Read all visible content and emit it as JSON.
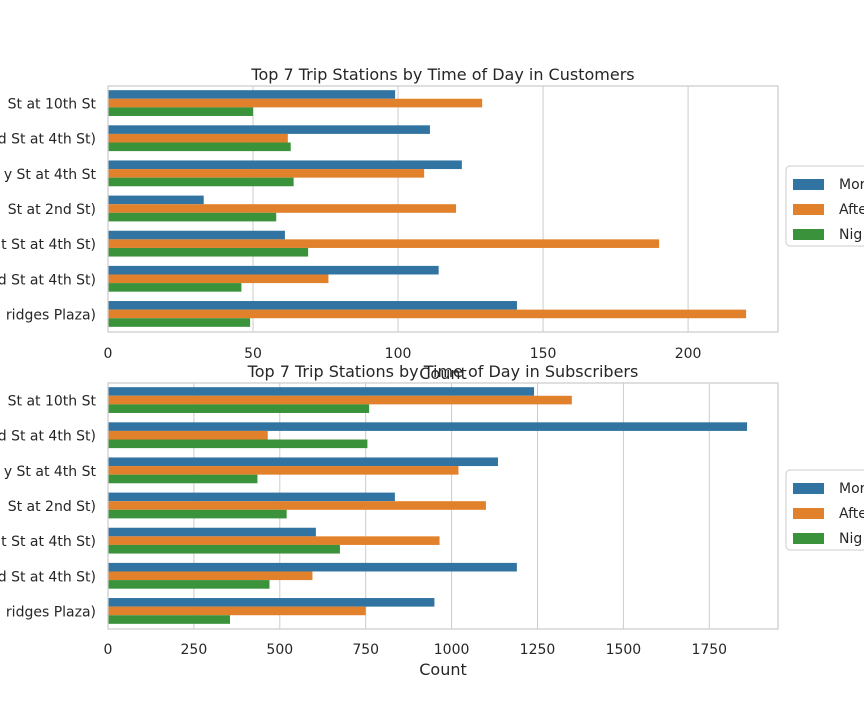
{
  "colors": {
    "morning": "#3274a1",
    "afternoon": "#e1812c",
    "night": "#3a923a",
    "grid": "#cccccc",
    "frame": "#cccccc"
  },
  "chart_data": [
    {
      "type": "bar",
      "orientation": "horizontal",
      "title": "Top 7 Trip Stations by Time of Day in Customers",
      "xlabel": "Count",
      "ylabel": "",
      "xlim": [
        0,
        231
      ],
      "xticks": [
        0,
        50,
        100,
        150,
        200
      ],
      "grid": true,
      "legend_position": "right (clipped)",
      "categories": [
        "St at 10th St",
        "d St at 4th St)",
        "y St at 4th St",
        "St at 2nd St)",
        "t St at 4th St)",
        "d St at 4th St)",
        "ridges Plaza)"
      ],
      "series": [
        {
          "name": "Mor",
          "values": [
            99,
            111,
            122,
            33,
            61,
            114,
            141
          ]
        },
        {
          "name": "Afte",
          "values": [
            129,
            62,
            109,
            120,
            190,
            76,
            220
          ]
        },
        {
          "name": "Nig",
          "values": [
            50,
            63,
            64,
            58,
            69,
            46,
            49
          ]
        }
      ]
    },
    {
      "type": "bar",
      "orientation": "horizontal",
      "title": "Top 7 Trip Stations by Time of Day in Subscribers",
      "xlabel": "Count",
      "ylabel": "",
      "xlim": [
        0,
        1950
      ],
      "xticks": [
        0,
        250,
        500,
        750,
        1000,
        1250,
        1500,
        1750
      ],
      "grid": true,
      "legend_position": "right (clipped)",
      "categories": [
        "St at 10th St",
        "d St at 4th St)",
        "y St at 4th St",
        "St at 2nd St)",
        "t St at 4th St)",
        "d St at 4th St)",
        "ridges Plaza)"
      ],
      "series": [
        {
          "name": "Mor",
          "values": [
            1240,
            1860,
            1135,
            835,
            605,
            1190,
            950
          ]
        },
        {
          "name": "Afte",
          "values": [
            1350,
            465,
            1020,
            1100,
            965,
            595,
            750
          ]
        },
        {
          "name": "Nig",
          "values": [
            760,
            755,
            435,
            520,
            675,
            470,
            355
          ]
        }
      ]
    }
  ]
}
